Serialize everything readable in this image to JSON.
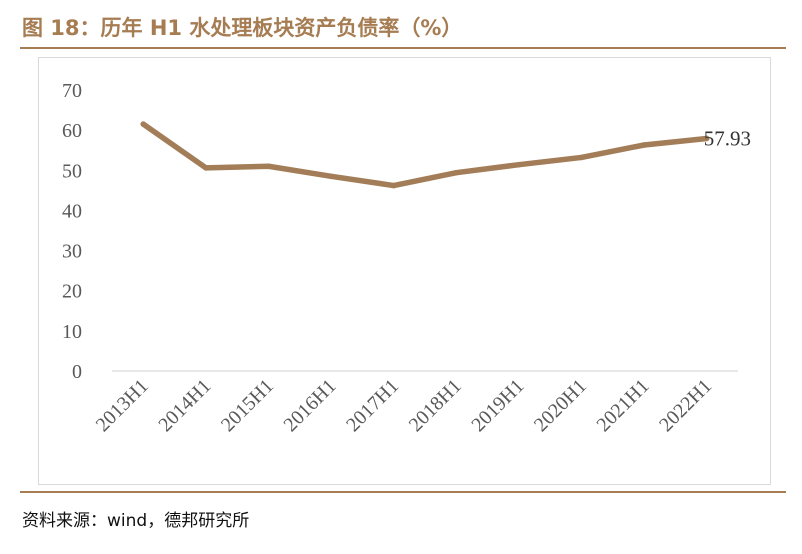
{
  "title": "图 18：历年 H1 水处理板块资产负债率（%）",
  "source": "资料来源：wind，德邦研究所",
  "colors": {
    "accent": "#a67c52",
    "line": "#a27d57"
  },
  "chart_data": {
    "type": "line",
    "title": "",
    "xlabel": "",
    "ylabel": "",
    "categories": [
      "2013H1",
      "2014H1",
      "2015H1",
      "2016H1",
      "2017H1",
      "2018H1",
      "2019H1",
      "2020H1",
      "2021H1",
      "2022H1"
    ],
    "series": [
      {
        "values": [
          61.5,
          50.6,
          51.0,
          48.5,
          46.2,
          49.4,
          51.4,
          53.2,
          56.3,
          57.93
        ]
      }
    ],
    "data_labels": [
      "",
      "",
      "",
      "",
      "",
      "",
      "",
      "",
      "",
      "57.93"
    ],
    "ylim": [
      0,
      70
    ],
    "yticks": [
      "0",
      "10",
      "20",
      "30",
      "40",
      "50",
      "60",
      "70"
    ],
    "grid": false,
    "legend": "none"
  }
}
